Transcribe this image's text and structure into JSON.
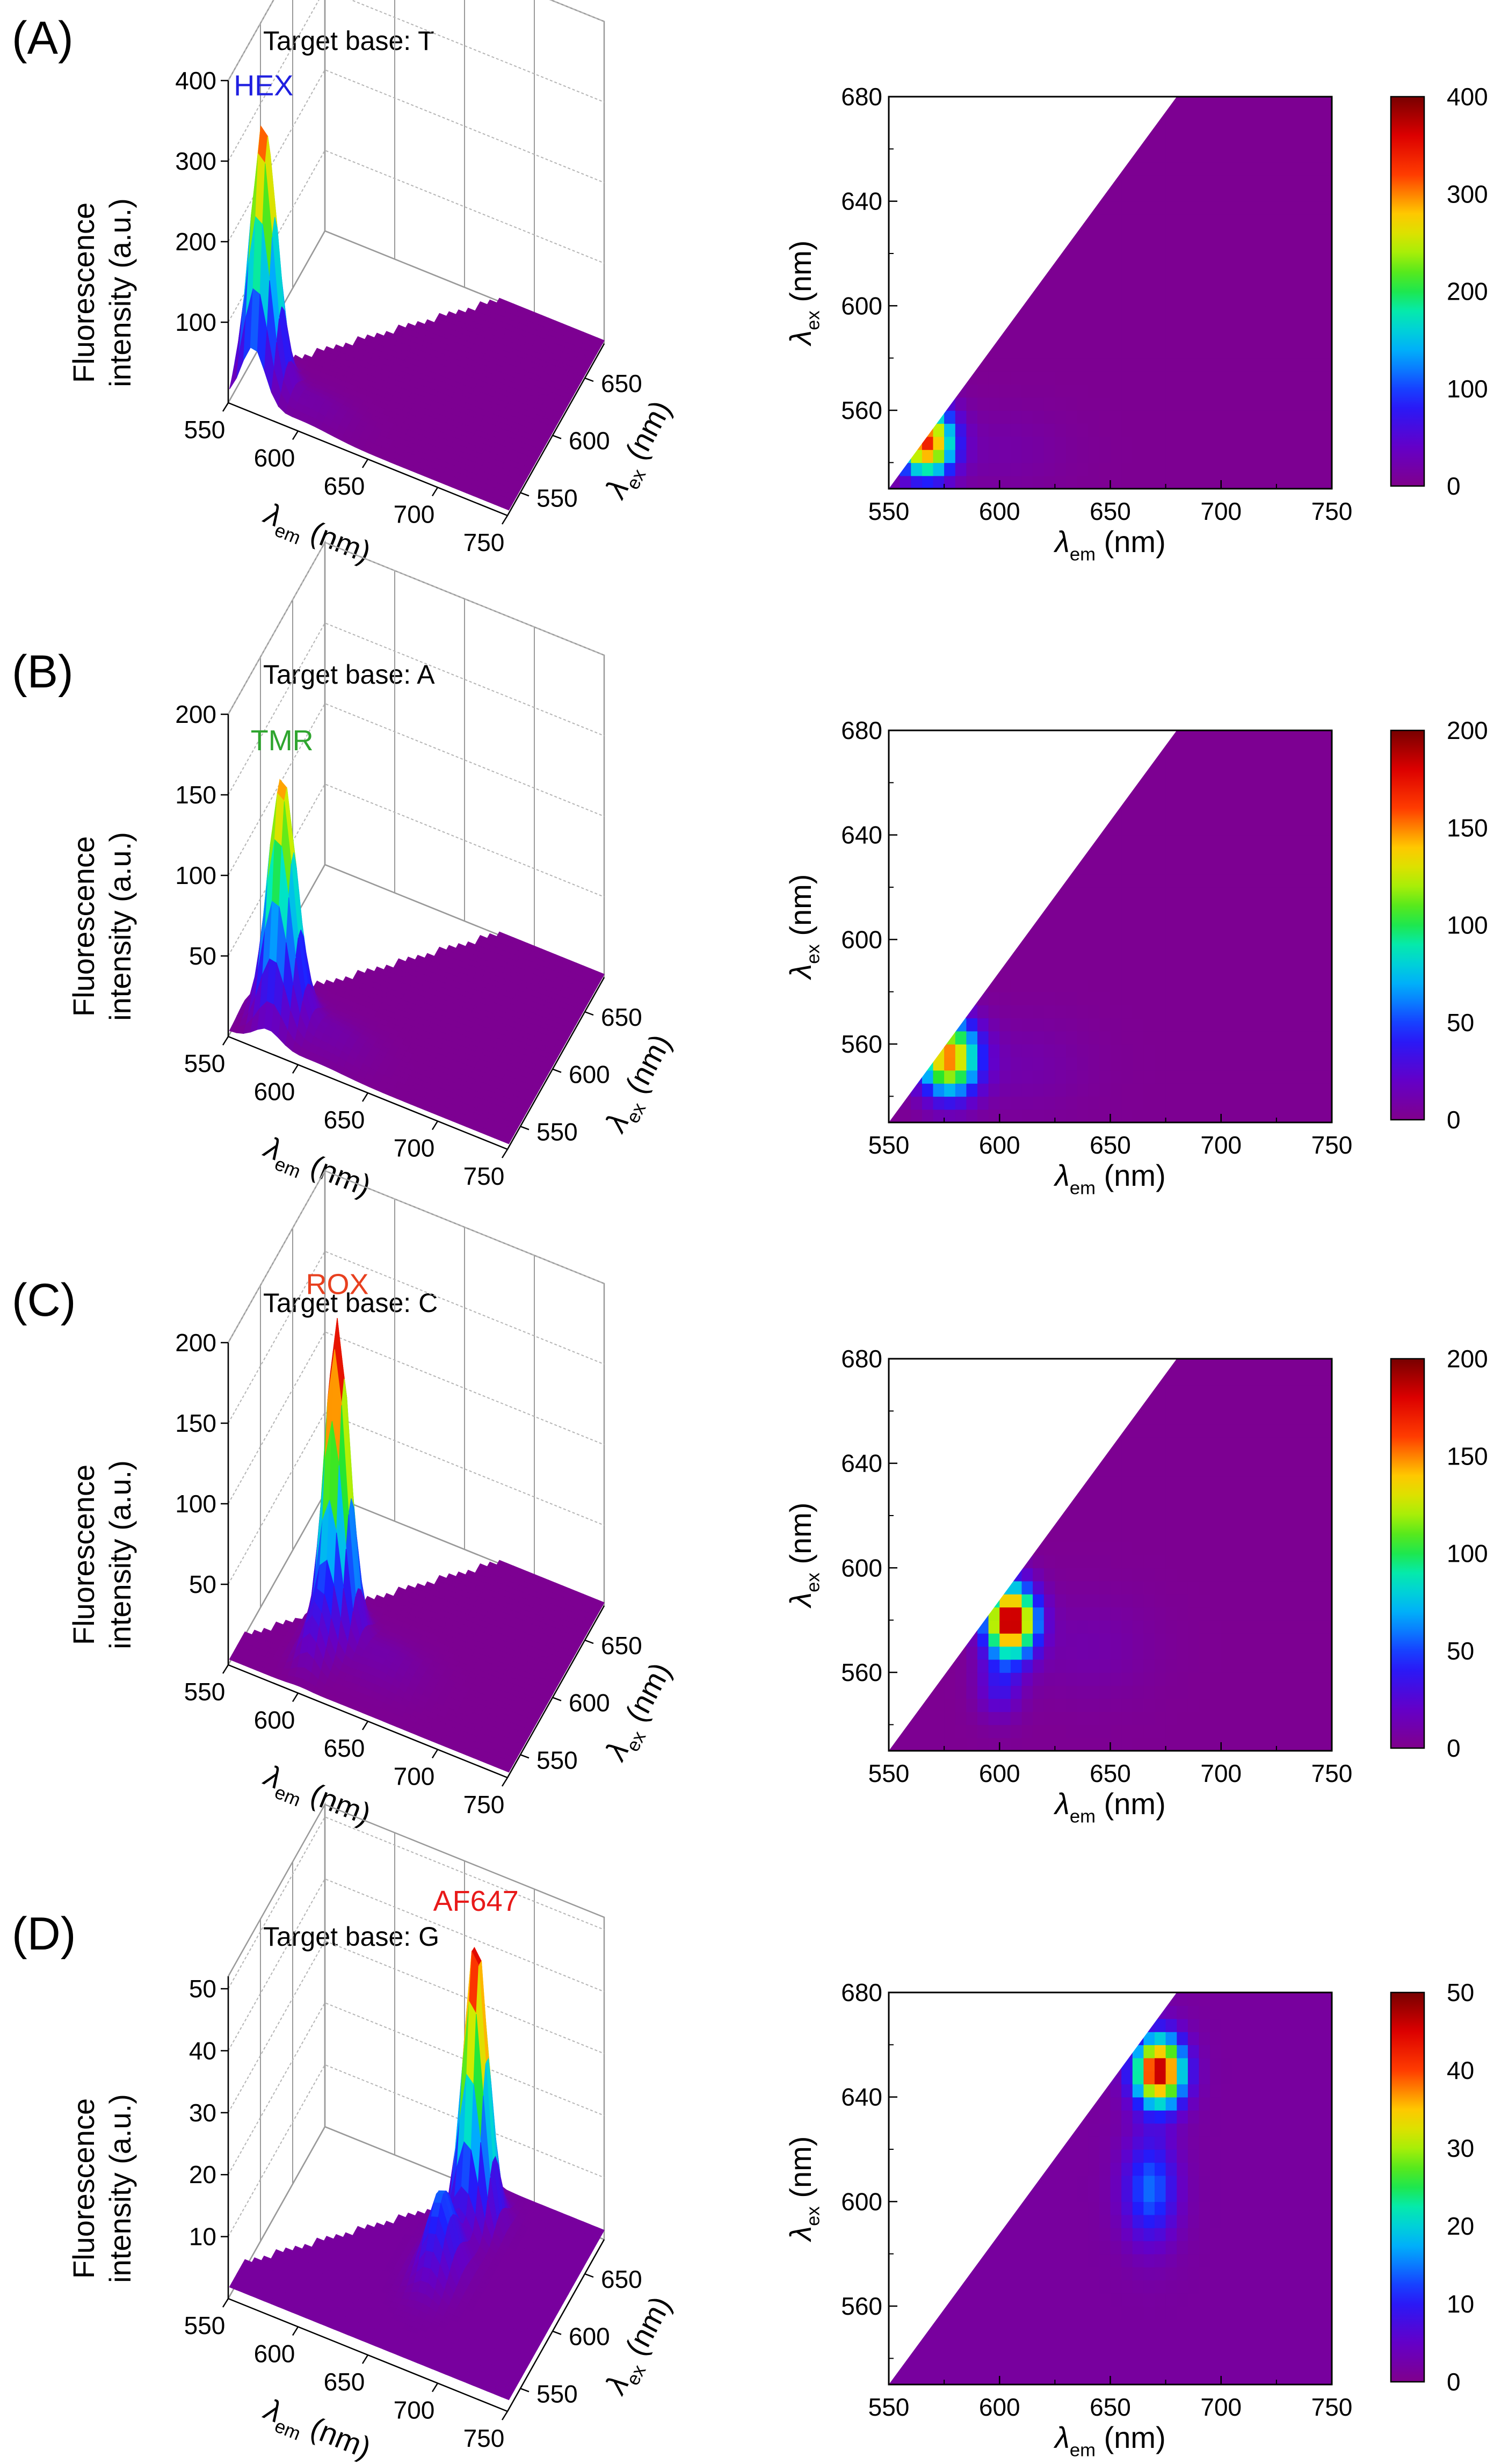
{
  "chart_data": [
    {
      "panel": "(A)",
      "type": "surface3d+heatmap",
      "title": "Target base: T",
      "dye": "HEX",
      "dye_color": "#1f1fe0",
      "zlabel": [
        "Fluorescence",
        "intensity (a.u.)"
      ],
      "zticks": [
        "100",
        "200",
        "300",
        "400"
      ],
      "zmax": 400,
      "em_ticks": [
        "550",
        "600",
        "650",
        "700",
        "750"
      ],
      "ex_ticks_3d": [
        "550",
        "600",
        "650"
      ],
      "ex_ticks_2d": [
        "560",
        "600",
        "640",
        "680"
      ],
      "em_range": [
        550,
        750
      ],
      "ex_range": [
        530,
        680
      ],
      "xlabel": {
        "sym": "λ",
        "sub": "em",
        "unit": " (nm)"
      },
      "ylabel": {
        "sym": "λ",
        "sub": "ex",
        "unit": " (nm)"
      },
      "colorbar": {
        "min": 0,
        "max": 400,
        "ticks": [
          "0",
          "100",
          "200",
          "300",
          "400"
        ]
      },
      "peaks": [
        {
          "em": 567,
          "ex": 548,
          "amp": 330,
          "wem": 12,
          "wex": 13
        },
        {
          "em": 600,
          "ex": 545,
          "amp": 14,
          "wem": 30,
          "wex": 16
        }
      ],
      "bg": 4
    },
    {
      "panel": "(B)",
      "type": "surface3d+heatmap",
      "title": "Target base: A",
      "dye": "TMR",
      "dye_color": "#2fa52f",
      "zlabel": [
        "Fluorescence",
        "intensity (a.u.)"
      ],
      "zticks": [
        "50",
        "100",
        "150",
        "200"
      ],
      "zmax": 200,
      "em_ticks": [
        "550",
        "600",
        "650",
        "700",
        "750"
      ],
      "ex_ticks_3d": [
        "550",
        "600",
        "650"
      ],
      "ex_ticks_2d": [
        "560",
        "600",
        "640",
        "680"
      ],
      "em_range": [
        550,
        750
      ],
      "ex_range": [
        530,
        680
      ],
      "xlabel": {
        "sym": "λ",
        "sub": "em",
        "unit": " (nm)"
      },
      "ylabel": {
        "sym": "λ",
        "sub": "ex",
        "unit": " (nm)"
      },
      "colorbar": {
        "min": 0,
        "max": 200,
        "ticks": [
          "0",
          "50",
          "100",
          "150",
          "200"
        ]
      },
      "peaks": [
        {
          "em": 577,
          "ex": 555,
          "amp": 150,
          "wem": 13,
          "wex": 14
        },
        {
          "em": 610,
          "ex": 552,
          "amp": 8,
          "wem": 30,
          "wex": 18
        }
      ],
      "bg": 2
    },
    {
      "panel": "(C)",
      "type": "surface3d+heatmap",
      "title": "Target base: C",
      "dye": "ROX",
      "dye_color": "#e8401f",
      "zlabel": [
        "Fluorescence",
        "intensity (a.u.)"
      ],
      "zticks": [
        "50",
        "100",
        "150",
        "200"
      ],
      "zmax": 200,
      "em_ticks": [
        "550",
        "600",
        "650",
        "700",
        "750"
      ],
      "ex_ticks_3d": [
        "550",
        "600",
        "650"
      ],
      "ex_ticks_2d": [
        "560",
        "600",
        "640",
        "680"
      ],
      "em_range": [
        550,
        750
      ],
      "ex_range": [
        530,
        680
      ],
      "xlabel": {
        "sym": "λ",
        "sub": "em",
        "unit": " (nm)"
      },
      "ylabel": {
        "sym": "λ",
        "sub": "ex",
        "unit": " (nm)"
      },
      "colorbar": {
        "min": 0,
        "max": 200,
        "ticks": [
          "0",
          "50",
          "100",
          "150",
          "200"
        ]
      },
      "peaks": [
        {
          "em": 605,
          "ex": 580,
          "amp": 195,
          "wem": 11,
          "wex": 13
        },
        {
          "em": 600,
          "ex": 555,
          "amp": 30,
          "wem": 10,
          "wex": 12
        },
        {
          "em": 640,
          "ex": 570,
          "amp": 8,
          "wem": 30,
          "wex": 20
        }
      ],
      "bg": 2
    },
    {
      "panel": "(D)",
      "type": "surface3d+heatmap",
      "title": "Target base: G",
      "dye": "AF647",
      "dye_color": "#e81a1a",
      "zlabel": [
        "Fluorescence",
        "intensity (a.u.)"
      ],
      "zticks": [
        "10",
        "20",
        "30",
        "40",
        "50"
      ],
      "zmax": 52,
      "em_ticks": [
        "550",
        "600",
        "650",
        "700",
        "750"
      ],
      "ex_ticks_3d": [
        "550",
        "600",
        "650"
      ],
      "ex_ticks_2d": [
        "560",
        "600",
        "640",
        "680"
      ],
      "em_range": [
        550,
        750
      ],
      "ex_range": [
        530,
        680
      ],
      "xlabel": {
        "sym": "λ",
        "sub": "em",
        "unit": " (nm)"
      },
      "ylabel": {
        "sym": "λ",
        "sub": "ex",
        "unit": " (nm)"
      },
      "colorbar": {
        "min": 0,
        "max": 50,
        "ticks": [
          "0",
          "10",
          "20",
          "30",
          "40",
          "50"
        ]
      },
      "peaks": [
        {
          "em": 672,
          "ex": 650,
          "amp": 46,
          "wem": 11,
          "wex": 13
        },
        {
          "em": 668,
          "ex": 605,
          "amp": 13,
          "wem": 12,
          "wex": 20
        }
      ],
      "bg": 1.5
    }
  ]
}
